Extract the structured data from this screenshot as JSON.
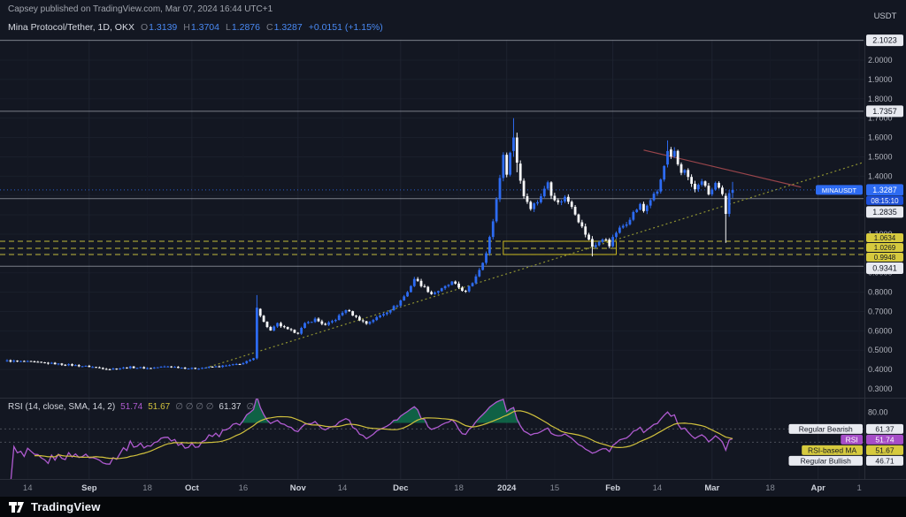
{
  "header": {
    "attribution": "Capsey published on TradingView.com, Mar 07, 2024 16:44 UTC+1",
    "symbol_title": "Mina Protocol/Tether, 1D, OKX",
    "ohlc": {
      "o_label": "O",
      "open": "1.3139",
      "h_label": "H",
      "high": "1.3704",
      "l_label": "L",
      "low": "1.2876",
      "c_label": "C",
      "close": "1.3287",
      "change": "+0.0151 (+1.15%)"
    }
  },
  "price_axis": {
    "currency": "USDT",
    "ticks": [
      "2.0000",
      "1.9000",
      "1.8000",
      "1.7000",
      "1.6000",
      "1.5000",
      "1.4000",
      "1.2000",
      "1.1000",
      "0.9000",
      "0.8000",
      "0.7000",
      "0.6000",
      "0.5000",
      "0.4000",
      "0.3000"
    ]
  },
  "rsi_legend": {
    "title": "RSI (14, close, SMA, 14, 2)",
    "value": "51.74",
    "ma_value": "51.67",
    "empties": "∅ ∅ ∅ ∅",
    "bearish_value": "61.37",
    "empty2": "∅"
  },
  "footer": {
    "brand": "TradingView"
  },
  "colors": {
    "background": "#131722",
    "up": "#2d6bf2",
    "up_text": "#4a8af4",
    "down": "#f6f7f9",
    "accent_yellow": "#d6ca3e",
    "level_gray": "#cfd3dd",
    "rsi_line": "#b05bd1",
    "rsi_ma": "#d1c13d",
    "rsi_fill": "#0f6e4b",
    "trend": "#8f9331",
    "down_trend": "#b14d52",
    "axis_text": "#b2b5be"
  },
  "chart_data": {
    "type": "candlestick",
    "title": "Mina Protocol/Tether, 1D, OKX",
    "symbol": "MINAUSDT",
    "exchange": "OKX",
    "interval": "1D",
    "ohlc_last": {
      "open": 1.3139,
      "high": 1.3704,
      "low": 1.2876,
      "close": 1.3287,
      "change": 0.0151,
      "change_pct": 1.15
    },
    "y_range": [
      0.3,
      2.12
    ],
    "price_path": [
      [
        0,
        0.445
      ],
      [
        6,
        0.44
      ],
      [
        14,
        0.43
      ],
      [
        24,
        0.415
      ],
      [
        30,
        0.402
      ],
      [
        36,
        0.412
      ],
      [
        41,
        0.407
      ],
      [
        47,
        0.416
      ],
      [
        54,
        0.405
      ],
      [
        60,
        0.413
      ],
      [
        65,
        0.421
      ],
      [
        69,
        0.433
      ],
      [
        72,
        0.455
      ],
      [
        73,
        0.72
      ],
      [
        75,
        0.645
      ],
      [
        77,
        0.6
      ],
      [
        79,
        0.636
      ],
      [
        82,
        0.605
      ],
      [
        85,
        0.59
      ],
      [
        87,
        0.635
      ],
      [
        90,
        0.66
      ],
      [
        93,
        0.628
      ],
      [
        96,
        0.66
      ],
      [
        99,
        0.71
      ],
      [
        102,
        0.67
      ],
      [
        105,
        0.638
      ],
      [
        108,
        0.668
      ],
      [
        111,
        0.7
      ],
      [
        114,
        0.735
      ],
      [
        117,
        0.8
      ],
      [
        119,
        0.87
      ],
      [
        121,
        0.838
      ],
      [
        124,
        0.792
      ],
      [
        127,
        0.815
      ],
      [
        130,
        0.85
      ],
      [
        132,
        0.824
      ],
      [
        134,
        0.8
      ],
      [
        136,
        0.85
      ],
      [
        138,
        0.92
      ],
      [
        140,
        1.0
      ],
      [
        141,
        1.08
      ],
      [
        142,
        1.17
      ],
      [
        143,
        1.28
      ],
      [
        144,
        1.4
      ],
      [
        145,
        1.5
      ],
      [
        146,
        1.42
      ],
      [
        147,
        1.52
      ],
      [
        148,
        1.6
      ],
      [
        149,
        1.47
      ],
      [
        150,
        1.38
      ],
      [
        151,
        1.3
      ],
      [
        153,
        1.24
      ],
      [
        155,
        1.27
      ],
      [
        157,
        1.33
      ],
      [
        158,
        1.37
      ],
      [
        159,
        1.31
      ],
      [
        161,
        1.26
      ],
      [
        163,
        1.29
      ],
      [
        165,
        1.25
      ],
      [
        167,
        1.17
      ],
      [
        169,
        1.1
      ],
      [
        171,
        1.035
      ],
      [
        173,
        1.06
      ],
      [
        175,
        1.075
      ],
      [
        176,
        1.045
      ],
      [
        178,
        1.11
      ],
      [
        181,
        1.16
      ],
      [
        183,
        1.21
      ],
      [
        185,
        1.25
      ],
      [
        186,
        1.22
      ],
      [
        188,
        1.28
      ],
      [
        190,
        1.32
      ],
      [
        191,
        1.38
      ],
      [
        192,
        1.45
      ],
      [
        193,
        1.53
      ],
      [
        194,
        1.49
      ],
      [
        195,
        1.52
      ],
      [
        196,
        1.46
      ],
      [
        197,
        1.42
      ],
      [
        198,
        1.44
      ],
      [
        199,
        1.39
      ],
      [
        200,
        1.36
      ],
      [
        201,
        1.33
      ],
      [
        202,
        1.35
      ],
      [
        203,
        1.38
      ],
      [
        204,
        1.34
      ],
      [
        205,
        1.31
      ],
      [
        206,
        1.33
      ],
      [
        207,
        1.36
      ],
      [
        208,
        1.33
      ],
      [
        209,
        1.3
      ],
      [
        210,
        1.205
      ],
      [
        211,
        1.312
      ],
      [
        212,
        1.3287
      ]
    ],
    "specials": [
      {
        "d": 73,
        "o": 0.458,
        "h": 0.785,
        "l": 0.452,
        "c": 0.72
      },
      {
        "d": 148,
        "o": 1.53,
        "h": 1.7,
        "l": 1.5,
        "c": 1.6
      },
      {
        "d": 149,
        "o": 1.6,
        "h": 1.625,
        "l": 1.42,
        "c": 1.47
      },
      {
        "d": 171,
        "o": 1.075,
        "h": 1.09,
        "l": 0.985,
        "c": 1.035
      },
      {
        "d": 193,
        "o": 1.46,
        "h": 1.585,
        "l": 1.445,
        "c": 1.53
      },
      {
        "d": 210,
        "o": 1.298,
        "h": 1.312,
        "l": 1.055,
        "c": 1.205
      },
      {
        "d": 211,
        "o": 1.205,
        "h": 1.328,
        "l": 1.19,
        "c": 1.312
      },
      {
        "d": 212,
        "o": 1.3139,
        "h": 1.3704,
        "l": 1.2876,
        "c": 1.3287
      }
    ],
    "level_lines": [
      {
        "price": 2.1023,
        "label": "2.1023",
        "style": "solid",
        "color": "#cfd3dd"
      },
      {
        "price": 1.7357,
        "label": "1.7357",
        "style": "solid",
        "color": "#cfd3dd"
      },
      {
        "price": 1.2835,
        "label": "1.2835",
        "style": "solid",
        "color": "#cfd3dd"
      },
      {
        "price": 0.9341,
        "label": "0.9341",
        "style": "solid",
        "color": "#cfd3dd"
      },
      {
        "price": 1.0634,
        "label": "1.0634",
        "style": "dashed",
        "color": "#d6ca3e"
      },
      {
        "price": 1.0269,
        "label": "1.0269",
        "style": "dashed",
        "color": "#d6ca3e"
      },
      {
        "price": 0.9948,
        "label": "0.9948",
        "style": "dashed",
        "color": "#d6ca3e"
      }
    ],
    "last_price": {
      "value": 1.3287,
      "label": "1.3287",
      "countdown": "08:15:10",
      "tag": "MINAUSDT"
    },
    "trend_line": {
      "from": {
        "d": 58,
        "p": 0.408
      },
      "to": {
        "d": 250,
        "p": 1.47
      },
      "color": "#8f9331"
    },
    "down_line": {
      "from": {
        "d": 186,
        "p": 1.535
      },
      "to": {
        "d": 232,
        "p": 1.343
      },
      "color": "#b14d52"
    },
    "highlight_box": {
      "d1": 145,
      "d2": 178,
      "p1": 0.9948,
      "p2": 1.0634,
      "color": "#c9b81f"
    },
    "x_axis": {
      "labels": [
        {
          "t": "14",
          "d": 6,
          "major": false
        },
        {
          "t": "Sep",
          "d": 24,
          "major": true
        },
        {
          "t": "18",
          "d": 41,
          "major": false
        },
        {
          "t": "Oct",
          "d": 54,
          "major": true
        },
        {
          "t": "16",
          "d": 69,
          "major": false
        },
        {
          "t": "Nov",
          "d": 85,
          "major": true
        },
        {
          "t": "14",
          "d": 98,
          "major": false
        },
        {
          "t": "Dec",
          "d": 115,
          "major": true
        },
        {
          "t": "18",
          "d": 132,
          "major": false
        },
        {
          "t": "2024",
          "d": 146,
          "major": true
        },
        {
          "t": "15",
          "d": 160,
          "major": false
        },
        {
          "t": "Feb",
          "d": 177,
          "major": true
        },
        {
          "t": "14",
          "d": 190,
          "major": false
        },
        {
          "t": "Mar",
          "d": 206,
          "major": true
        },
        {
          "t": "18",
          "d": 223,
          "major": false
        },
        {
          "t": "Apr",
          "d": 237,
          "major": true
        },
        {
          "t": "1",
          "d": 249,
          "major": false
        }
      ]
    },
    "rsi": {
      "fill_base": 68,
      "fill_peak_gate": 85,
      "dashed_levels": [
        61.37,
        46.71
      ],
      "axis_tick": {
        "v": 80,
        "label": "80.00"
      },
      "badges": [
        {
          "v": 61.37,
          "label": "Regular Bearish",
          "value": "61.37",
          "color": "gray"
        },
        {
          "v": 51.74,
          "label": "RSI",
          "value": "51.74",
          "color": "purple"
        },
        {
          "v": 51.67,
          "label": "RSI-based MA",
          "value": "51.67",
          "color": "yellow"
        },
        {
          "v": 46.71,
          "label": "Regular Bullish",
          "value": "46.71",
          "color": "gray"
        }
      ]
    }
  }
}
